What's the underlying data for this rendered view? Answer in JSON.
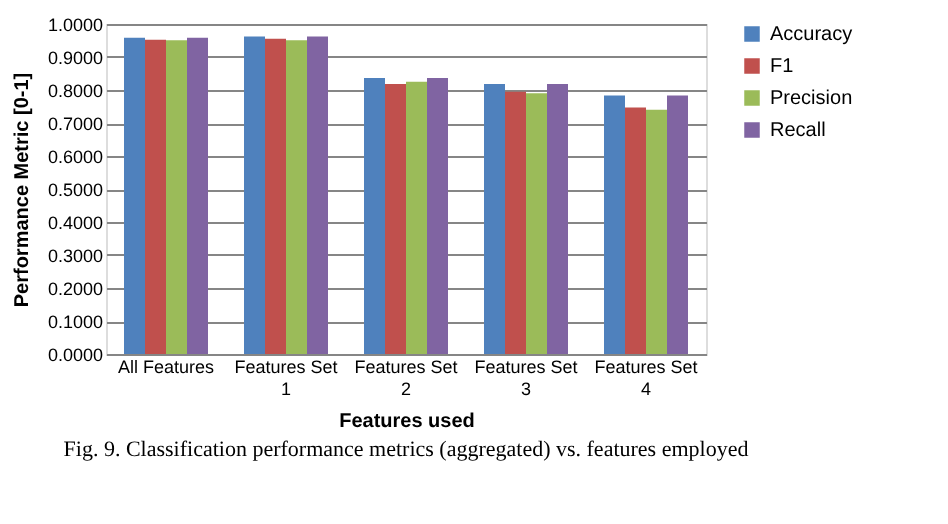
{
  "chart_data": {
    "type": "bar",
    "xlabel": "Features used",
    "ylabel": "Performance Metric [0-1]",
    "categories": [
      "All Features",
      "Features Set 1",
      "Features Set 2",
      "Features Set 3",
      "Features Set 4"
    ],
    "series": [
      {
        "name": "Accuracy",
        "color": "#4f81bd",
        "values": [
          0.958,
          0.962,
          0.836,
          0.818,
          0.783
        ]
      },
      {
        "name": "F1",
        "color": "#c0504d",
        "values": [
          0.952,
          0.955,
          0.818,
          0.795,
          0.747
        ]
      },
      {
        "name": "Precision",
        "color": "#9bbb59",
        "values": [
          0.951,
          0.951,
          0.825,
          0.79,
          0.74
        ]
      },
      {
        "name": "Recall",
        "color": "#8064a2",
        "values": [
          0.958,
          0.962,
          0.836,
          0.818,
          0.783
        ]
      }
    ],
    "ylim": [
      0,
      1
    ],
    "yticks": [
      {
        "value": 0,
        "label": "0.0000"
      },
      {
        "value": 0.1,
        "label": "0.1000"
      },
      {
        "value": 0.2,
        "label": "0.2000"
      },
      {
        "value": 0.3,
        "label": "0.3000"
      },
      {
        "value": 0.4,
        "label": "0.4000"
      },
      {
        "value": 0.5,
        "label": "0.5000"
      },
      {
        "value": 0.6,
        "label": "0.6000"
      },
      {
        "value": 0.7,
        "label": "0.7000"
      },
      {
        "value": 0.8,
        "label": "0.8000"
      },
      {
        "value": 0.9,
        "label": "0.9000"
      },
      {
        "value": 1,
        "label": "1.0000"
      }
    ],
    "grid": "y",
    "legend": "right",
    "annotations": [
      "Fig. 9. Classification performance metrics (aggregated) vs. features employed"
    ]
  }
}
